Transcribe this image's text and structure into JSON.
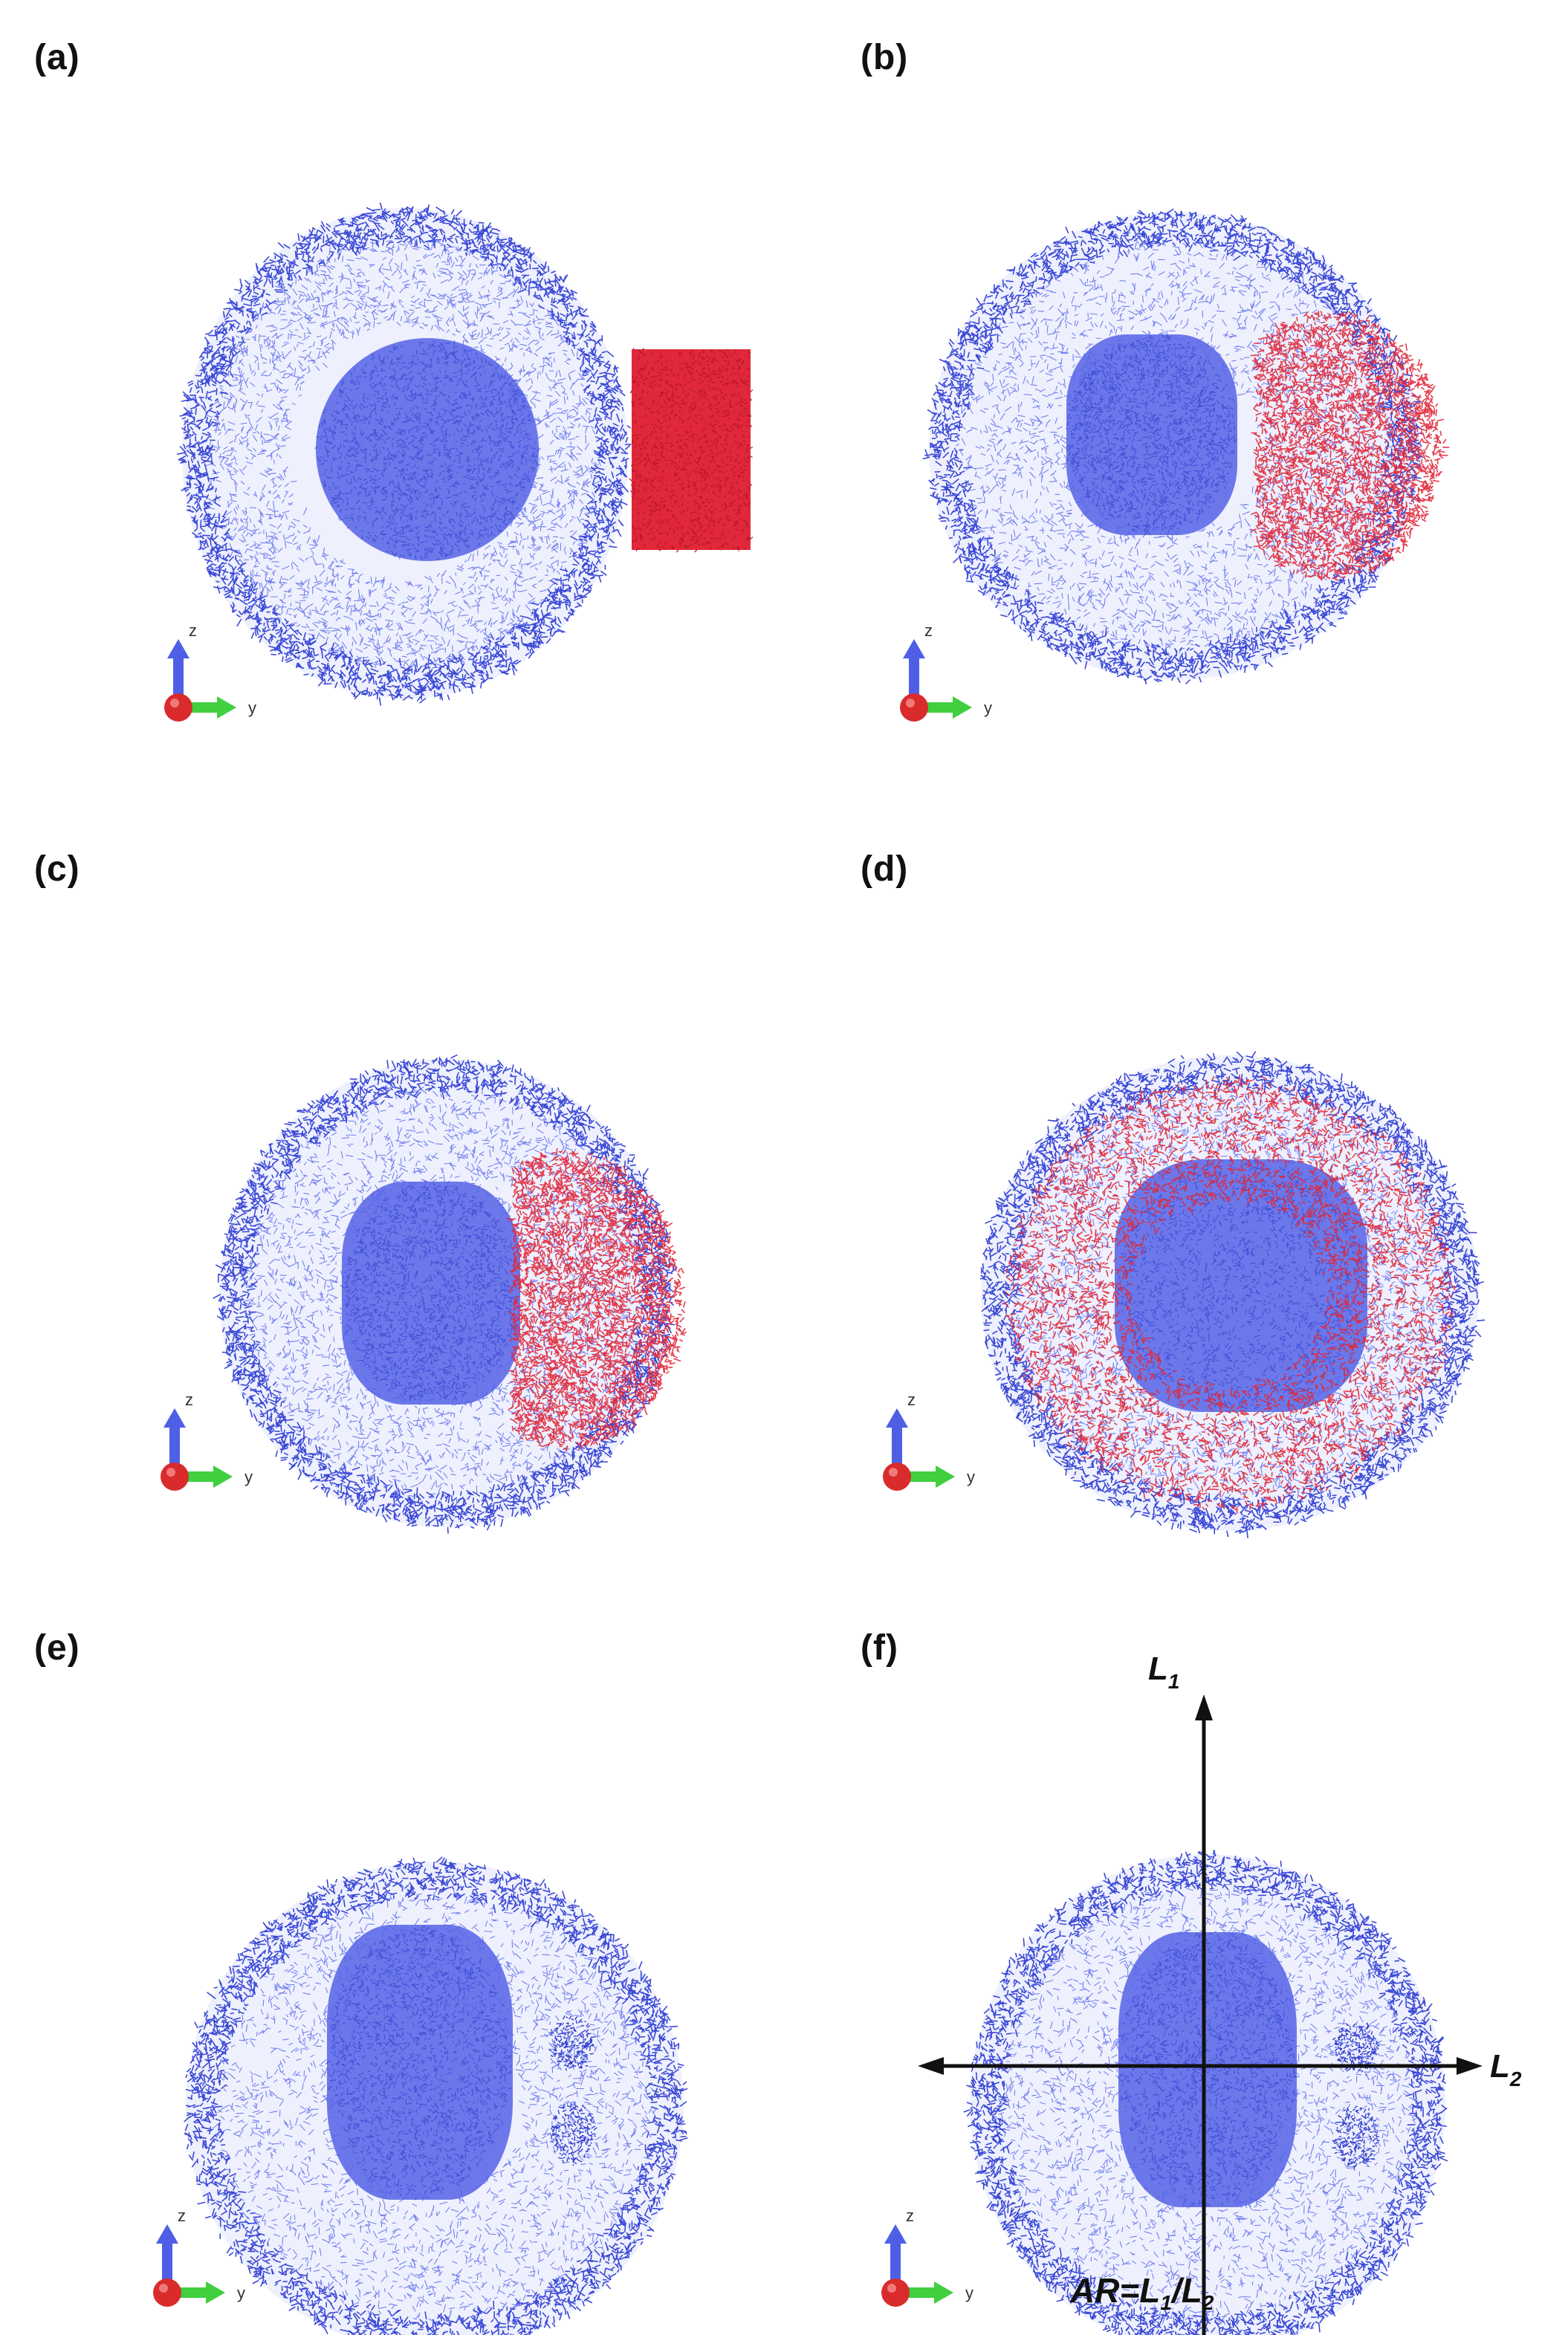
{
  "panels": [
    {
      "id": "a",
      "label": "(a)",
      "state": "initial",
      "cluster": "box"
    },
    {
      "id": "b",
      "label": "(b)",
      "state": "penetrating",
      "cluster": "cap"
    },
    {
      "id": "c",
      "label": "(c)",
      "state": "penetrating-deeper",
      "cluster": "crescent"
    },
    {
      "id": "d",
      "label": "(d)",
      "state": "dispersed",
      "cluster": "ring"
    },
    {
      "id": "e",
      "label": "(e)",
      "state": "final",
      "cluster": "none"
    },
    {
      "id": "f",
      "label": "(f)",
      "state": "final-annotated",
      "cluster": "none"
    }
  ],
  "axis_triad": {
    "vertical": "z",
    "horizontal": "y"
  },
  "annotation": {
    "l1": {
      "main": "L",
      "sub": "1"
    },
    "l2": {
      "main": "L",
      "sub": "2"
    },
    "formula": {
      "prefix": "AR=L",
      "sub1": "1",
      "mid": "/L",
      "sub2": "2"
    }
  },
  "colors": {
    "membrane": "#4a5be8",
    "membrane_dense": "#3b49d6",
    "particles": "#e0283a",
    "axis_z": "#4e5fe6",
    "axis_y": "#3fcf3f",
    "axis_x": "#d92b2b",
    "background": "#ffffff"
  }
}
